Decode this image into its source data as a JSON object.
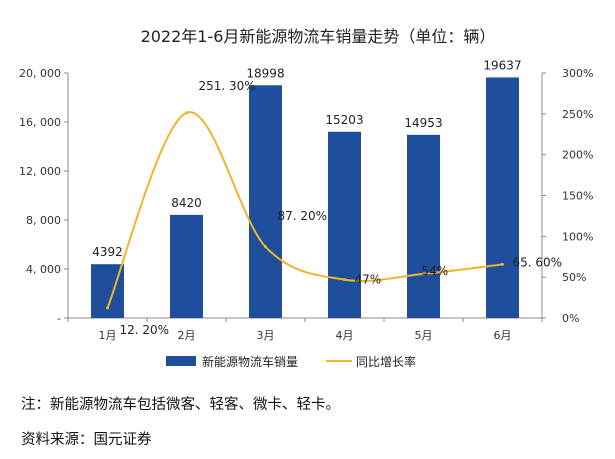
{
  "chart_data": {
    "type": "bar+line",
    "title": "2022年1-6月新能源物流车销量走势（单位：辆）",
    "categories": [
      "1月",
      "2月",
      "3月",
      "4月",
      "5月",
      "6月"
    ],
    "series": [
      {
        "name": "新能源物流车销量",
        "type": "bar",
        "axis": "left",
        "color": "#1f4e9c",
        "values": [
          4392,
          8420,
          18998,
          15203,
          14953,
          19637
        ],
        "labels": [
          "4392",
          "8420",
          "18998",
          "15203",
          "14953",
          "19637"
        ]
      },
      {
        "name": "同比增长率",
        "type": "line",
        "axis": "right",
        "color": "#f0b429",
        "values": [
          12.2,
          251.3,
          87.2,
          47,
          54,
          65.6
        ],
        "labels": [
          "12. 20%",
          "251. 30%",
          "87. 20%",
          "47%",
          "54%",
          "65. 60%"
        ]
      }
    ],
    "y_left": {
      "range": [
        0,
        20000
      ],
      "ticks": [
        0,
        4000,
        8000,
        12000,
        16000,
        20000
      ],
      "tick_labels": [
        "-",
        "4, 000",
        "8, 000",
        "12, 000",
        "16, 000",
        "20, 000"
      ]
    },
    "y_right": {
      "range": [
        0,
        300
      ],
      "ticks": [
        0,
        50,
        100,
        150,
        200,
        250,
        300
      ],
      "tick_labels": [
        "0%",
        "50%",
        "100%",
        "150%",
        "200%",
        "250%",
        "300%"
      ]
    },
    "legend": "bottom-center"
  },
  "notes": {
    "note": "注：新能源物流车包括微客、轻客、微卡、轻卡。",
    "source": "资料来源：国元证券"
  }
}
